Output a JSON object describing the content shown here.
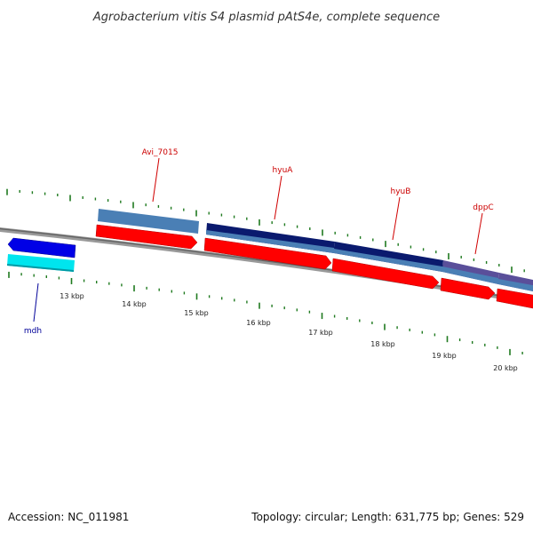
{
  "title": "Agrobacterium vitis S4 plasmid pAtS4e, complete sequence",
  "footer": {
    "accession": "Accession: NC_011981",
    "summary": "Topology: circular; Length: 631,775 bp; Genes: 529"
  },
  "colors": {
    "backbone": "#888888",
    "tick": "#1f7a1f",
    "forward_cds": "#ff0000",
    "forward_band": "#4a7fb5",
    "reverse_cds": "#0000e6",
    "reverse_band": "#00e5ee",
    "navy_band": "#0a1a6e",
    "purple_band": "#5a4f9a",
    "forward_label": "#cc0000",
    "reverse_label": "#000099"
  },
  "kbp_ticks": [
    "13 kbp",
    "14 kbp",
    "15 kbp",
    "16 kbp",
    "17 kbp",
    "18 kbp",
    "19 kbp",
    "20 kbp"
  ],
  "gene_labels": [
    {
      "name": "Avi_7015",
      "strand": "forward"
    },
    {
      "name": "hyuA",
      "strand": "forward"
    },
    {
      "name": "hyuB",
      "strand": "forward"
    },
    {
      "name": "dppC",
      "strand": "forward"
    },
    {
      "name": "mdh",
      "strand": "reverse"
    }
  ]
}
